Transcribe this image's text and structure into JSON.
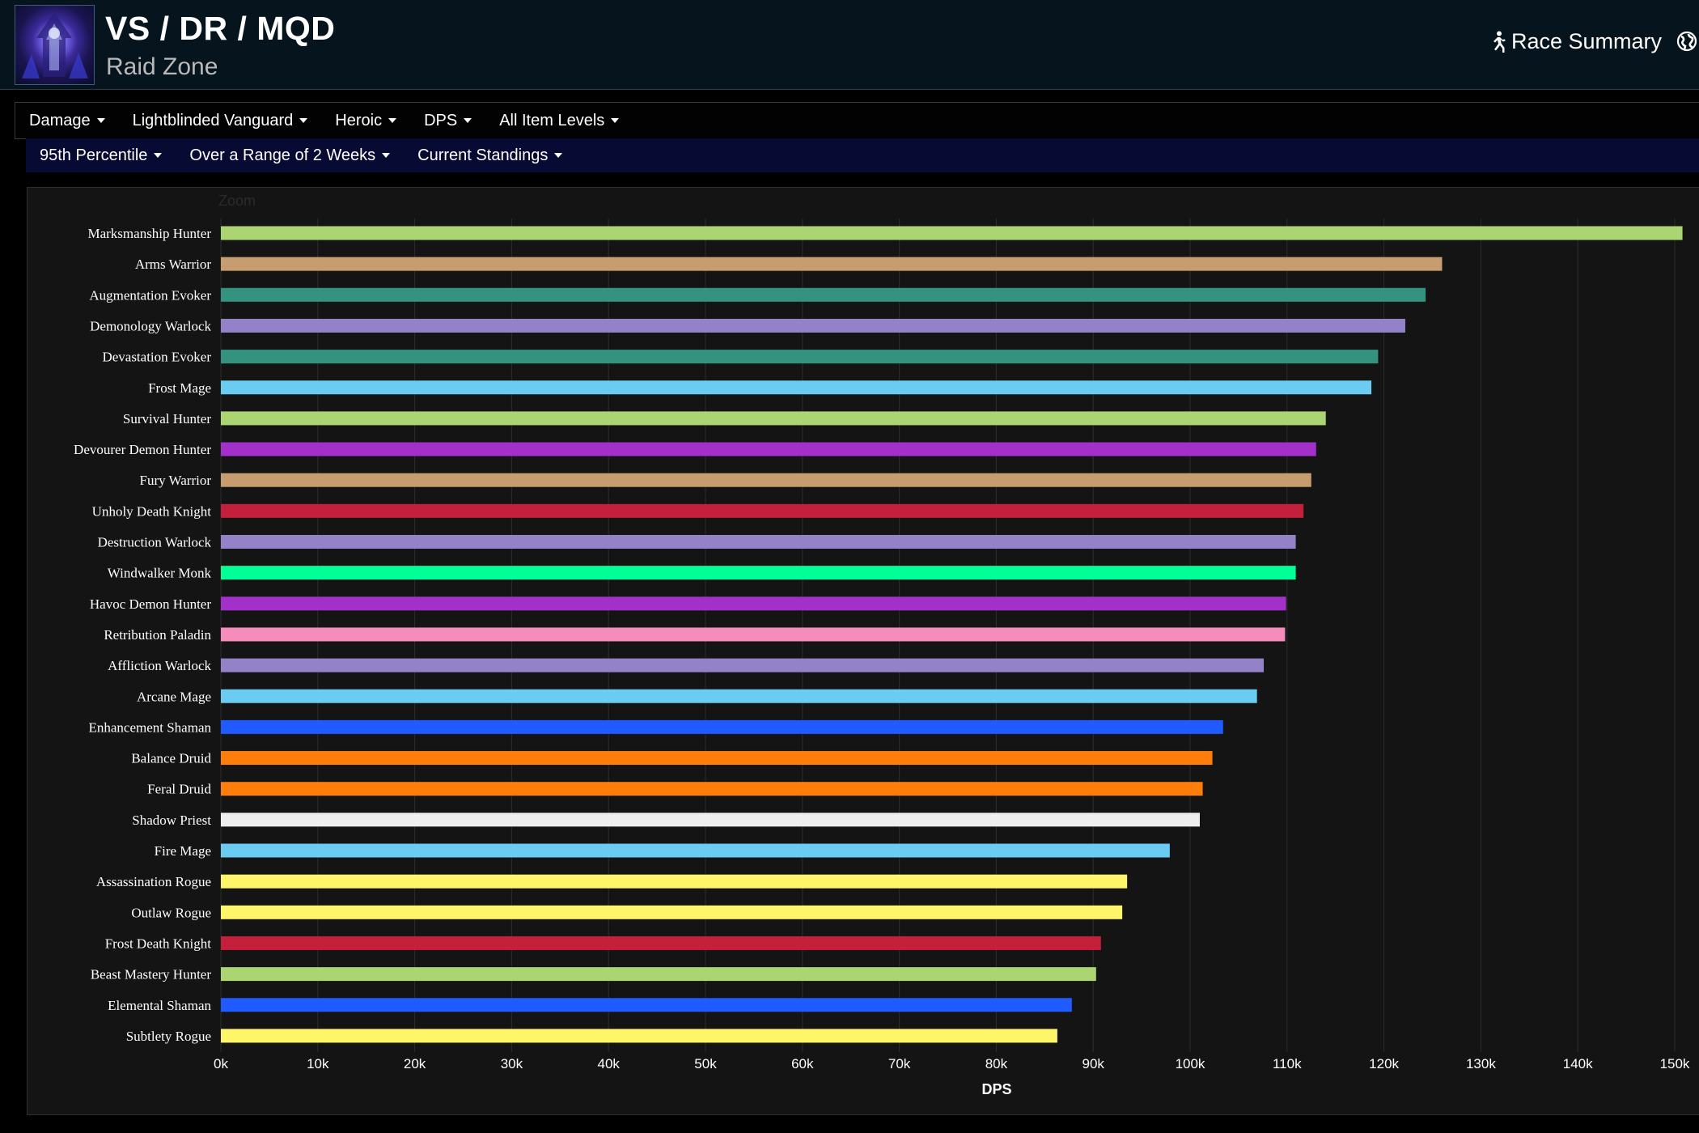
{
  "header": {
    "title": "VS / DR / MQD",
    "subtitle": "Raid Zone",
    "race_summary_label": "Race Summary",
    "icons": {
      "zone": "raid-zone-icon",
      "runner": "running-person-icon",
      "globe": "globe-icon"
    }
  },
  "menu": {
    "primary": [
      {
        "label": "Damage"
      },
      {
        "label": "Lightblinded Vanguard"
      },
      {
        "label": "Heroic"
      },
      {
        "label": "DPS"
      },
      {
        "label": "All Item Levels"
      }
    ],
    "secondary": [
      {
        "label": "95th Percentile"
      },
      {
        "label": "Over a Range of 2 Weeks"
      },
      {
        "label": "Current Standings"
      }
    ]
  },
  "chart_panel": {
    "zoom_label": "Zoom"
  },
  "chart_data": {
    "type": "bar",
    "orientation": "horizontal",
    "xlabel": "DPS",
    "ylabel": "",
    "xlim": [
      0,
      150000
    ],
    "x_ticks": [
      0,
      10000,
      20000,
      30000,
      40000,
      50000,
      60000,
      70000,
      80000,
      90000,
      100000,
      110000,
      120000,
      130000,
      140000,
      150000
    ],
    "x_tick_labels": [
      "0k",
      "10k",
      "20k",
      "30k",
      "40k",
      "50k",
      "60k",
      "70k",
      "80k",
      "90k",
      "100k",
      "110k",
      "120k",
      "130k",
      "140k",
      "150k"
    ],
    "grid": true,
    "categories": [
      "Marksmanship Hunter",
      "Arms Warrior",
      "Augmentation Evoker",
      "Demonology Warlock",
      "Devastation Evoker",
      "Frost Mage",
      "Survival Hunter",
      "Devourer Demon Hunter",
      "Fury Warrior",
      "Unholy Death Knight",
      "Destruction Warlock",
      "Windwalker Monk",
      "Havoc Demon Hunter",
      "Retribution Paladin",
      "Affliction Warlock",
      "Arcane Mage",
      "Enhancement Shaman",
      "Balance Druid",
      "Feral Druid",
      "Shadow Priest",
      "Fire Mage",
      "Assassination Rogue",
      "Outlaw Rogue",
      "Frost Death Knight",
      "Beast Mastery Hunter",
      "Elemental Shaman",
      "Subtlety Rogue"
    ],
    "values": [
      150800,
      126000,
      124300,
      122200,
      119400,
      118700,
      114000,
      113000,
      112500,
      111700,
      110900,
      110900,
      109900,
      109800,
      107600,
      106900,
      103400,
      102300,
      101300,
      101000,
      97900,
      93500,
      93000,
      90800,
      90300,
      87800,
      86300
    ],
    "colors": [
      "#abd473",
      "#c79c6e",
      "#33937f",
      "#9482c9",
      "#33937f",
      "#69ccf0",
      "#abd473",
      "#a330c9",
      "#c79c6e",
      "#c41f3b",
      "#9482c9",
      "#00ff96",
      "#a330c9",
      "#f58cba",
      "#9482c9",
      "#69ccf0",
      "#1f5bff",
      "#ff7d0a",
      "#ff7d0a",
      "#efefef",
      "#69ccf0",
      "#fff569",
      "#fff569",
      "#c41f3b",
      "#abd473",
      "#1f5bff",
      "#fff569"
    ]
  }
}
